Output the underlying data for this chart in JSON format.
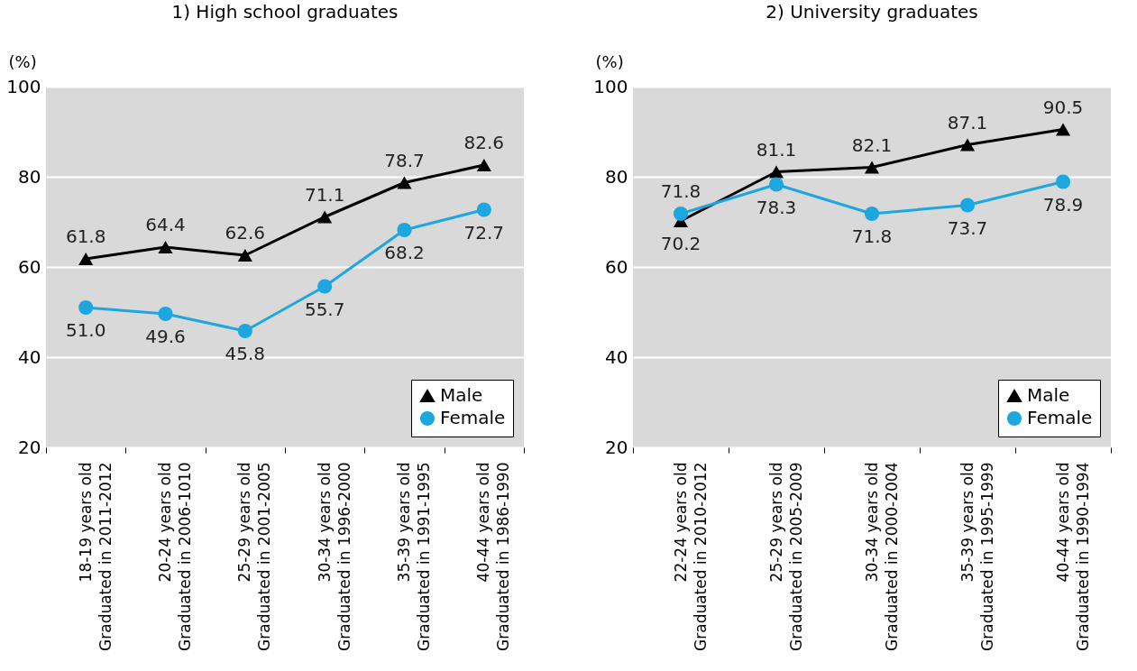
{
  "chart_data": [
    {
      "type": "line",
      "title": "1) High school graduates",
      "ylabel": "(%)",
      "categories": [
        "18-19 years old\nGraduated in 2011-2012",
        "20-24 years old\nGraduated in 2006-1010",
        "25-29 years old\nGraduated in 2001-2005",
        "30-34 years old\nGraduated in 1996-2000",
        "35-39 years old\nGraduated in 1991-1995",
        "40-44 years old\nGraduated in 1986-1990"
      ],
      "series": [
        {
          "name": "Male",
          "color": "#000000",
          "marker": "triangle",
          "values": [
            61.8,
            64.4,
            62.6,
            71.1,
            78.7,
            82.6
          ],
          "value_labels": [
            "61.8",
            "64.4",
            "62.6",
            "71.1",
            "78.7",
            "82.6"
          ]
        },
        {
          "name": "Female",
          "color": "#1ca7e0",
          "marker": "circle",
          "values": [
            51.0,
            49.6,
            45.8,
            55.7,
            68.2,
            72.7
          ],
          "value_labels": [
            "51.0",
            "49.6",
            "45.8",
            "55.7",
            "68.2",
            "72.7"
          ]
        }
      ],
      "ylim": [
        20,
        100
      ],
      "yticks": [
        20,
        40,
        60,
        80,
        100
      ],
      "grid": "y",
      "legend": "bottom right"
    },
    {
      "type": "line",
      "title": "2) University graduates",
      "ylabel": "(%)",
      "categories": [
        "22-24 years old\nGraduated in 2010-2012",
        "25-29 years old\nGraduated in 2005-2009",
        "30-34 years old\nGraduated in 2000-2004",
        "35-39 years old\nGraduated in 1995-1999",
        "40-44 years old\nGraduated in 1990-1994"
      ],
      "series": [
        {
          "name": "Male",
          "color": "#000000",
          "marker": "triangle",
          "values": [
            70.2,
            81.1,
            82.1,
            87.1,
            90.5
          ],
          "value_labels": [
            "70.2",
            "81.1",
            "82.1",
            "87.1",
            "90.5"
          ]
        },
        {
          "name": "Female",
          "color": "#1ca7e0",
          "marker": "circle",
          "values": [
            71.8,
            78.3,
            71.8,
            73.7,
            78.9
          ],
          "value_labels": [
            "71.8",
            "78.3",
            "71.8",
            "73.7",
            "78.9"
          ]
        }
      ],
      "ylim": [
        20,
        100
      ],
      "yticks": [
        20,
        40,
        60,
        80,
        100
      ],
      "grid": "y",
      "legend": "bottom right"
    }
  ]
}
